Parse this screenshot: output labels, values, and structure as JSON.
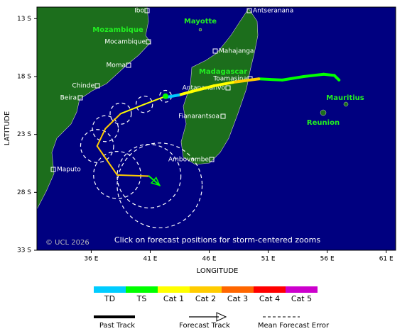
{
  "chart_data": {
    "type": "map",
    "xlabel": "LONGITUDE",
    "ylabel": "LATITUDE",
    "xlim": [
      31.4,
      61.8
    ],
    "ylim": [
      -33,
      -12
    ],
    "xticks": [
      {
        "value": 36,
        "label": "36 E"
      },
      {
        "value": 41,
        "label": "41 E"
      },
      {
        "value": 46,
        "label": "46 E"
      },
      {
        "value": 51,
        "label": "51 E"
      },
      {
        "value": 56,
        "label": "56 E"
      },
      {
        "value": 61,
        "label": "61 E"
      }
    ],
    "yticks": [
      {
        "value": -13,
        "label": "13 S"
      },
      {
        "value": -18,
        "label": "18 S"
      },
      {
        "value": -23,
        "label": "23 S"
      },
      {
        "value": -28,
        "label": "28 S"
      },
      {
        "value": -33,
        "label": "33 S"
      }
    ],
    "categories": [
      {
        "name": "TD",
        "color": "#00ccff"
      },
      {
        "name": "TS",
        "color": "#00ff00"
      },
      {
        "name": "Cat 1",
        "color": "#ffff00"
      },
      {
        "name": "Cat 2",
        "color": "#ffcc00"
      },
      {
        "name": "Cat 3",
        "color": "#ff6600"
      },
      {
        "name": "Cat 4",
        "color": "#ff0000"
      },
      {
        "name": "Cat 5",
        "color": "#cc00cc"
      }
    ],
    "past_track": {
      "name": "Past Track",
      "lon": [
        57.0,
        56.6,
        55.7,
        54.0,
        52.2,
        50.2,
        48.0,
        46.4,
        44.5,
        43.4,
        42.3
      ],
      "lat": [
        -18.3,
        -17.9,
        -17.8,
        -18.0,
        -18.3,
        -18.2,
        -18.5,
        -18.8,
        -19.3,
        -19.6,
        -19.8
      ],
      "category": [
        "TS",
        "TS",
        "TS",
        "TS",
        "TS",
        "Cat 2",
        "Cat 1",
        "Cat 1",
        "Cat 1",
        "TD",
        "TD"
      ]
    },
    "forecast_track": {
      "name": "Forecast Track",
      "lon": [
        42.3,
        40.5,
        38.5,
        37.2,
        36.5,
        38.2,
        40.9,
        41.8
      ],
      "lat": [
        -19.7,
        -20.4,
        -21.2,
        -22.5,
        -24.0,
        -26.5,
        -26.6,
        -27.4
      ],
      "category": [
        "TD",
        "Cat 1",
        "Cat 1",
        "Cat 2",
        "Cat 2",
        "Cat 2",
        "Cat 2",
        "TS"
      ]
    },
    "forecast_error": {
      "name": "Mean Forecast Error",
      "radius": [
        0.5,
        0.7,
        0.9,
        1.1,
        1.4,
        2.0,
        2.7,
        3.6
      ]
    },
    "places": [
      "Ibo",
      "Antseranana",
      "Mayotte",
      "Mozambique",
      "Mocambique",
      "Mahajanga",
      "Moma",
      "Madagascar",
      "Toamasina",
      "Chinde",
      "Antananarivo",
      "Beira",
      "Fianarantsoa",
      "Mauritius",
      "Reunion",
      "Ambovombe",
      "Maputo"
    ],
    "copyright": "© UCL 2026",
    "note": "Click on forecast positions for storm-centered zooms"
  }
}
